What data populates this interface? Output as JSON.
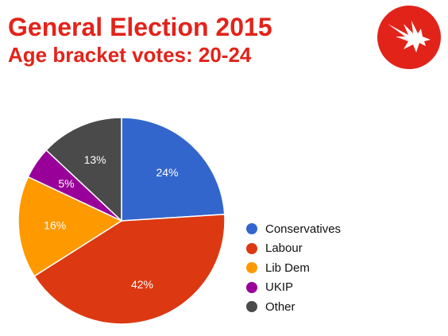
{
  "header": {
    "title": "General Election 2015",
    "subtitle": "Age bracket votes: 20-24"
  },
  "logo": {
    "icon": "eagle-icon",
    "color": "#e2231a"
  },
  "chart_data": {
    "type": "pie",
    "categories": [
      "Conservatives",
      "Labour",
      "Lib Dem",
      "UKIP",
      "Other"
    ],
    "values": [
      24,
      42,
      16,
      5,
      13
    ],
    "labels": [
      "24%",
      "42%",
      "16%",
      "5%",
      "13%"
    ],
    "colors": [
      "#3366cc",
      "#dc3912",
      "#ff9900",
      "#990099",
      "#4a4a4a"
    ],
    "start_angle_deg": 0,
    "direction": "clockwise",
    "legend_position": "right"
  }
}
